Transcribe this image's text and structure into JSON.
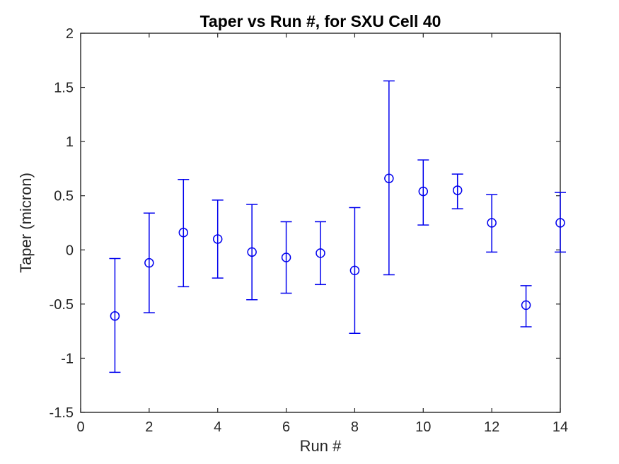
{
  "chart_data": {
    "type": "scatter",
    "subtype": "errorbar",
    "title": "Taper vs Run #, for SXU Cell 40",
    "xlabel": "Run #",
    "ylabel": "Taper (micron)",
    "x": [
      1,
      2,
      3,
      4,
      5,
      6,
      7,
      8,
      9,
      10,
      11,
      12,
      13,
      14
    ],
    "y": [
      -0.61,
      -0.12,
      0.16,
      0.1,
      -0.02,
      -0.07,
      -0.03,
      -0.19,
      0.66,
      0.54,
      0.55,
      0.25,
      -0.51,
      0.25
    ],
    "y_lower": [
      -1.13,
      -0.58,
      -0.34,
      -0.26,
      -0.46,
      -0.4,
      -0.32,
      -0.77,
      -0.23,
      0.23,
      0.38,
      -0.02,
      -0.71,
      -0.02
    ],
    "y_upper": [
      -0.08,
      0.34,
      0.65,
      0.46,
      0.42,
      0.26,
      0.26,
      0.39,
      1.56,
      0.83,
      0.7,
      0.51,
      -0.33,
      0.53
    ],
    "xlim": [
      0,
      14
    ],
    "ylim": [
      -1.5,
      2
    ],
    "xticks": [
      0,
      2,
      4,
      6,
      8,
      10,
      12,
      14
    ],
    "yticks": [
      -1.5,
      -1,
      -0.5,
      0,
      0.5,
      1,
      1.5,
      2
    ],
    "grid": false,
    "legend": null,
    "marker": "open-circle",
    "series_color": "#0000ee",
    "axis_color": "#262626",
    "title_color": "#000000",
    "background_color": "#ffffff"
  }
}
